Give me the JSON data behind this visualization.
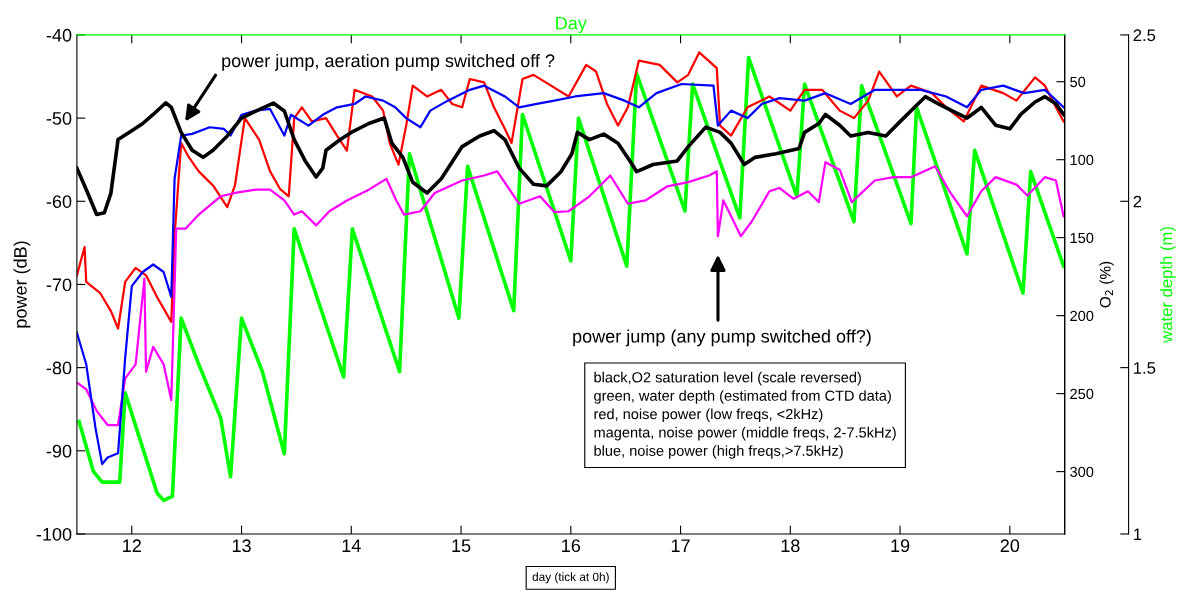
{
  "chart_data": {
    "type": "line",
    "xlabel": "day (tick at 0h)",
    "ylabel": "power (dB)",
    "y2label": "O$_{2}$ (%)",
    "y3label": "water depth (m)",
    "x2label": "Day",
    "xlim": [
      11.5,
      20.5
    ],
    "xticks": [
      12,
      13,
      14,
      15,
      16,
      17,
      18,
      19,
      20
    ],
    "ylim": [
      -100,
      -40
    ],
    "yticks": [
      -100,
      -90,
      -80,
      -70,
      -60,
      -50,
      -40
    ],
    "y2lim": [
      340,
      20
    ],
    "y2ticks": [
      50,
      100,
      150,
      200,
      250,
      300
    ],
    "y3lim": [
      1,
      2.5
    ],
    "y3ticks": [
      1,
      1.5,
      2,
      2.5
    ],
    "annotations": [
      "power jump, aeration pump switched off ?",
      "power jump (any pump switched off?)",
      "black,O2 saturation level (scale reversed)\ngreen, water depth (estimated from CTD data)\nred, noise power (low freqs, <2kHz)\nmagenta, noise power (middle freqs, 2-7.5kHz)\nblue, noise power (high freqs,>7.5kHz)"
    ],
    "series": [
      {
        "color": "#00ff00",
        "axis": "y3",
        "x": [
          11.52,
          11.65,
          11.73,
          11.89,
          11.94,
          12.23,
          12.29,
          12.37,
          12.45,
          12.61,
          12.81,
          12.9,
          13.0,
          13.19,
          13.39,
          13.48,
          13.93,
          14.01,
          14.44,
          14.53,
          14.98,
          15.06,
          15.48,
          15.56,
          16.0,
          16.07,
          16.51,
          16.6,
          17.04,
          17.11,
          17.54,
          17.62,
          18.06,
          18.13,
          18.58,
          18.65,
          19.1,
          19.15,
          19.61,
          19.68,
          20.12,
          20.19,
          20.49
        ],
        "values": [
          1.338,
          1.188,
          1.156,
          1.156,
          1.424,
          1.123,
          1.101,
          1.113,
          1.649,
          1.51,
          1.349,
          1.172,
          1.649,
          1.488,
          1.241,
          1.917,
          1.472,
          1.917,
          1.488,
          2.143,
          1.649,
          2.105,
          1.671,
          2.261,
          1.821,
          2.25,
          1.805,
          2.384,
          1.971,
          2.352,
          1.95,
          2.432,
          2.014,
          2.352,
          1.939,
          2.347,
          1.933,
          2.282,
          1.842,
          2.153,
          1.724,
          2.089,
          1.805
        ]
      },
      {
        "color": "#000000",
        "axis": "y2",
        "x": [
          11.5,
          11.585,
          11.68,
          11.75,
          11.81,
          11.875,
          12.0,
          12.1,
          12.195,
          12.31,
          12.36,
          12.45,
          12.55,
          12.65,
          12.74,
          12.87,
          13.0,
          13.13,
          13.29,
          13.39,
          13.48,
          13.58,
          13.68,
          13.74,
          13.77,
          13.9,
          14.0,
          14.16,
          14.3,
          14.37,
          14.47,
          14.56,
          14.69,
          14.82,
          15.01,
          15.17,
          15.3,
          15.4,
          15.53,
          15.66,
          15.78,
          15.91,
          16.01,
          16.06,
          16.17,
          16.3,
          16.43,
          16.56,
          16.6,
          16.75,
          16.97,
          17.07,
          17.23,
          17.36,
          17.46,
          17.58,
          17.68,
          17.87,
          18.08,
          18.13,
          18.26,
          18.32,
          18.45,
          18.55,
          18.71,
          18.87,
          19.0,
          19.13,
          19.23,
          19.35,
          19.48,
          19.61,
          19.74,
          19.87,
          20.0,
          20.1,
          20.23,
          20.32,
          20.42,
          20.49
        ],
        "values": [
          105.4,
          119.1,
          135.1,
          134,
          121.4,
          87.1,
          81.4,
          76.8,
          71,
          63.5,
          66.5,
          82.5,
          93.9,
          98.5,
          93.9,
          84.8,
          73.3,
          68.8,
          63.7,
          68.8,
          87.1,
          100.8,
          111.1,
          105.4,
          93.9,
          87.1,
          82.5,
          76.8,
          73.3,
          89.4,
          98.5,
          114.5,
          121.4,
          112.2,
          91.6,
          84.8,
          81.4,
          87.1,
          105.4,
          115.7,
          116.8,
          107.7,
          96.2,
          82.5,
          87.1,
          83.6,
          89.4,
          103.1,
          107.7,
          103.1,
          100.8,
          91.6,
          79.1,
          82.5,
          89.4,
          103.1,
          98.5,
          96.2,
          92.8,
          82.5,
          76.8,
          71,
          77.9,
          84.8,
          82.5,
          84.8,
          75.6,
          66.5,
          59.6,
          64.2,
          68.8,
          73.3,
          66.5,
          77.9,
          80.2,
          71,
          63,
          59.6,
          64.2,
          71
        ]
      },
      {
        "color": "#ff0000",
        "x": [
          11.5,
          11.57,
          11.585,
          11.71,
          11.81,
          11.875,
          11.94,
          12.035,
          12.13,
          12.23,
          12.36,
          12.39,
          12.45,
          12.52,
          12.61,
          12.74,
          12.87,
          12.94,
          13.03,
          13.16,
          13.26,
          13.35,
          13.43,
          13.48,
          13.55,
          13.64,
          13.77,
          13.87,
          13.96,
          14.03,
          14.19,
          14.29,
          14.35,
          14.43,
          14.5,
          14.56,
          14.69,
          14.82,
          14.92,
          15.01,
          15.08,
          15.21,
          15.3,
          15.4,
          15.46,
          15.56,
          15.66,
          15.82,
          15.98,
          16.14,
          16.23,
          16.33,
          16.43,
          16.52,
          16.62,
          16.81,
          16.97,
          17.07,
          17.17,
          17.33,
          17.36,
          17.46,
          17.61,
          17.81,
          18.0,
          18.13,
          18.29,
          18.45,
          18.58,
          18.71,
          18.81,
          18.97,
          19.1,
          19.29,
          19.42,
          19.58,
          19.74,
          19.94,
          20.06,
          20.23,
          20.32,
          20.42,
          20.49
        ],
        "values": [
          -68.9,
          -65.5,
          -69.7,
          -71,
          -73.2,
          -75.3,
          -69.7,
          -68,
          -68.9,
          -71.5,
          -74.5,
          -64.2,
          -53,
          -54.7,
          -56.4,
          -58.1,
          -60.7,
          -58.1,
          -50,
          -52.6,
          -56.4,
          -58.5,
          -59.4,
          -50,
          -48.7,
          -50.4,
          -50,
          -52.1,
          -53.9,
          -46.6,
          -47.4,
          -49.1,
          -53,
          -55.6,
          -50.9,
          -46.1,
          -47.4,
          -46.6,
          -48.3,
          -48.7,
          -45.3,
          -45.7,
          -48.7,
          -51.3,
          -53,
          -45.3,
          -44.8,
          -46.1,
          -47.4,
          -43.6,
          -44.4,
          -48.3,
          -50.9,
          -48.7,
          -43.1,
          -43.6,
          -45.7,
          -44.8,
          -42.1,
          -44,
          -50.9,
          -52.1,
          -48.7,
          -47.4,
          -49.1,
          -46.6,
          -46.6,
          -49.1,
          -50,
          -47.9,
          -44.4,
          -47.4,
          -46.1,
          -47,
          -48.7,
          -50.4,
          -46.1,
          -47,
          -47.9,
          -45.1,
          -46.1,
          -48.7,
          -50.4
        ]
      },
      {
        "color": "#ff00ff",
        "x": [
          11.5,
          11.585,
          11.68,
          11.78,
          11.875,
          11.94,
          12.035,
          12.115,
          12.13,
          12.195,
          12.29,
          12.36,
          12.405,
          12.49,
          12.61,
          12.81,
          12.94,
          13.13,
          13.26,
          13.39,
          13.48,
          13.55,
          13.68,
          13.8,
          13.96,
          14.16,
          14.32,
          14.41,
          14.48,
          14.63,
          14.76,
          15.01,
          15.21,
          15.33,
          15.53,
          15.72,
          15.85,
          15.98,
          16.17,
          16.36,
          16.52,
          16.68,
          16.88,
          17.07,
          17.26,
          17.33,
          17.34,
          17.39,
          17.55,
          17.65,
          17.81,
          17.9,
          18.03,
          18.16,
          18.26,
          18.32,
          18.45,
          18.56,
          18.77,
          18.94,
          19.1,
          19.32,
          19.45,
          19.61,
          19.74,
          19.87,
          20.06,
          20.16,
          20.32,
          20.42,
          20.49
        ],
        "values": [
          -81.8,
          -82.6,
          -85.2,
          -86.9,
          -86.9,
          -81.3,
          -79.6,
          -69.3,
          -80.5,
          -77.5,
          -79.6,
          -83.9,
          -63.3,
          -63.3,
          -61.6,
          -59.4,
          -59,
          -58.6,
          -58.6,
          -59.9,
          -61.6,
          -61.2,
          -62.9,
          -61.2,
          -59.9,
          -58.6,
          -57.3,
          -59.9,
          -61.6,
          -61.2,
          -59,
          -57.5,
          -56.9,
          -56.4,
          -60.3,
          -59.4,
          -61.3,
          -61.2,
          -59.4,
          -56.9,
          -60.3,
          -59.9,
          -58.2,
          -57.7,
          -56.9,
          -56.4,
          -64.2,
          -59.9,
          -64.2,
          -62.4,
          -58.8,
          -58.4,
          -59.7,
          -58.8,
          -60.1,
          -55.3,
          -56.2,
          -60.1,
          -57.5,
          -57.1,
          -57.1,
          -55.8,
          -58.8,
          -61.8,
          -58.8,
          -57.1,
          -58,
          -59.3,
          -57.1,
          -57.5,
          -61.8
        ]
      },
      {
        "color": "#0000ff",
        "x": [
          11.5,
          11.585,
          11.67,
          11.73,
          11.78,
          11.875,
          11.94,
          12.0,
          12.1,
          12.195,
          12.29,
          12.36,
          12.39,
          12.45,
          12.55,
          12.71,
          12.84,
          12.9,
          13.0,
          13.13,
          13.26,
          13.39,
          13.45,
          13.61,
          13.74,
          13.87,
          14.03,
          14.13,
          14.29,
          14.4,
          14.5,
          14.63,
          14.72,
          14.88,
          15.08,
          15.21,
          15.4,
          15.53,
          15.69,
          15.85,
          16.04,
          16.3,
          16.49,
          16.62,
          16.78,
          17.01,
          17.3,
          17.34,
          17.46,
          17.61,
          17.74,
          17.9,
          18.13,
          18.32,
          18.55,
          18.77,
          19.0,
          19.19,
          19.42,
          19.61,
          19.74,
          19.94,
          20.13,
          20.32,
          20.49
        ],
        "values": [
          -75.8,
          -79.6,
          -87.3,
          -91.6,
          -90.8,
          -90.3,
          -78.8,
          -70.2,
          -68.5,
          -67.6,
          -68.5,
          -71.5,
          -57.3,
          -52.1,
          -51.9,
          -51.1,
          -51.3,
          -52.1,
          -49.6,
          -49.1,
          -48.9,
          -52.1,
          -49.6,
          -50.9,
          -49.6,
          -48.7,
          -48.3,
          -47.4,
          -47.9,
          -48.7,
          -50,
          -51.1,
          -49.1,
          -47.9,
          -46.6,
          -46.1,
          -47.4,
          -48.7,
          -48.3,
          -47.9,
          -47.4,
          -47,
          -47.9,
          -48.7,
          -47,
          -45.9,
          -46.1,
          -50.9,
          -49.1,
          -50,
          -48.3,
          -47.6,
          -47.9,
          -47,
          -48.3,
          -46.6,
          -46.6,
          -46.6,
          -47.4,
          -48.7,
          -46.6,
          -46.1,
          -47,
          -46.6,
          -48.7
        ]
      }
    ]
  }
}
